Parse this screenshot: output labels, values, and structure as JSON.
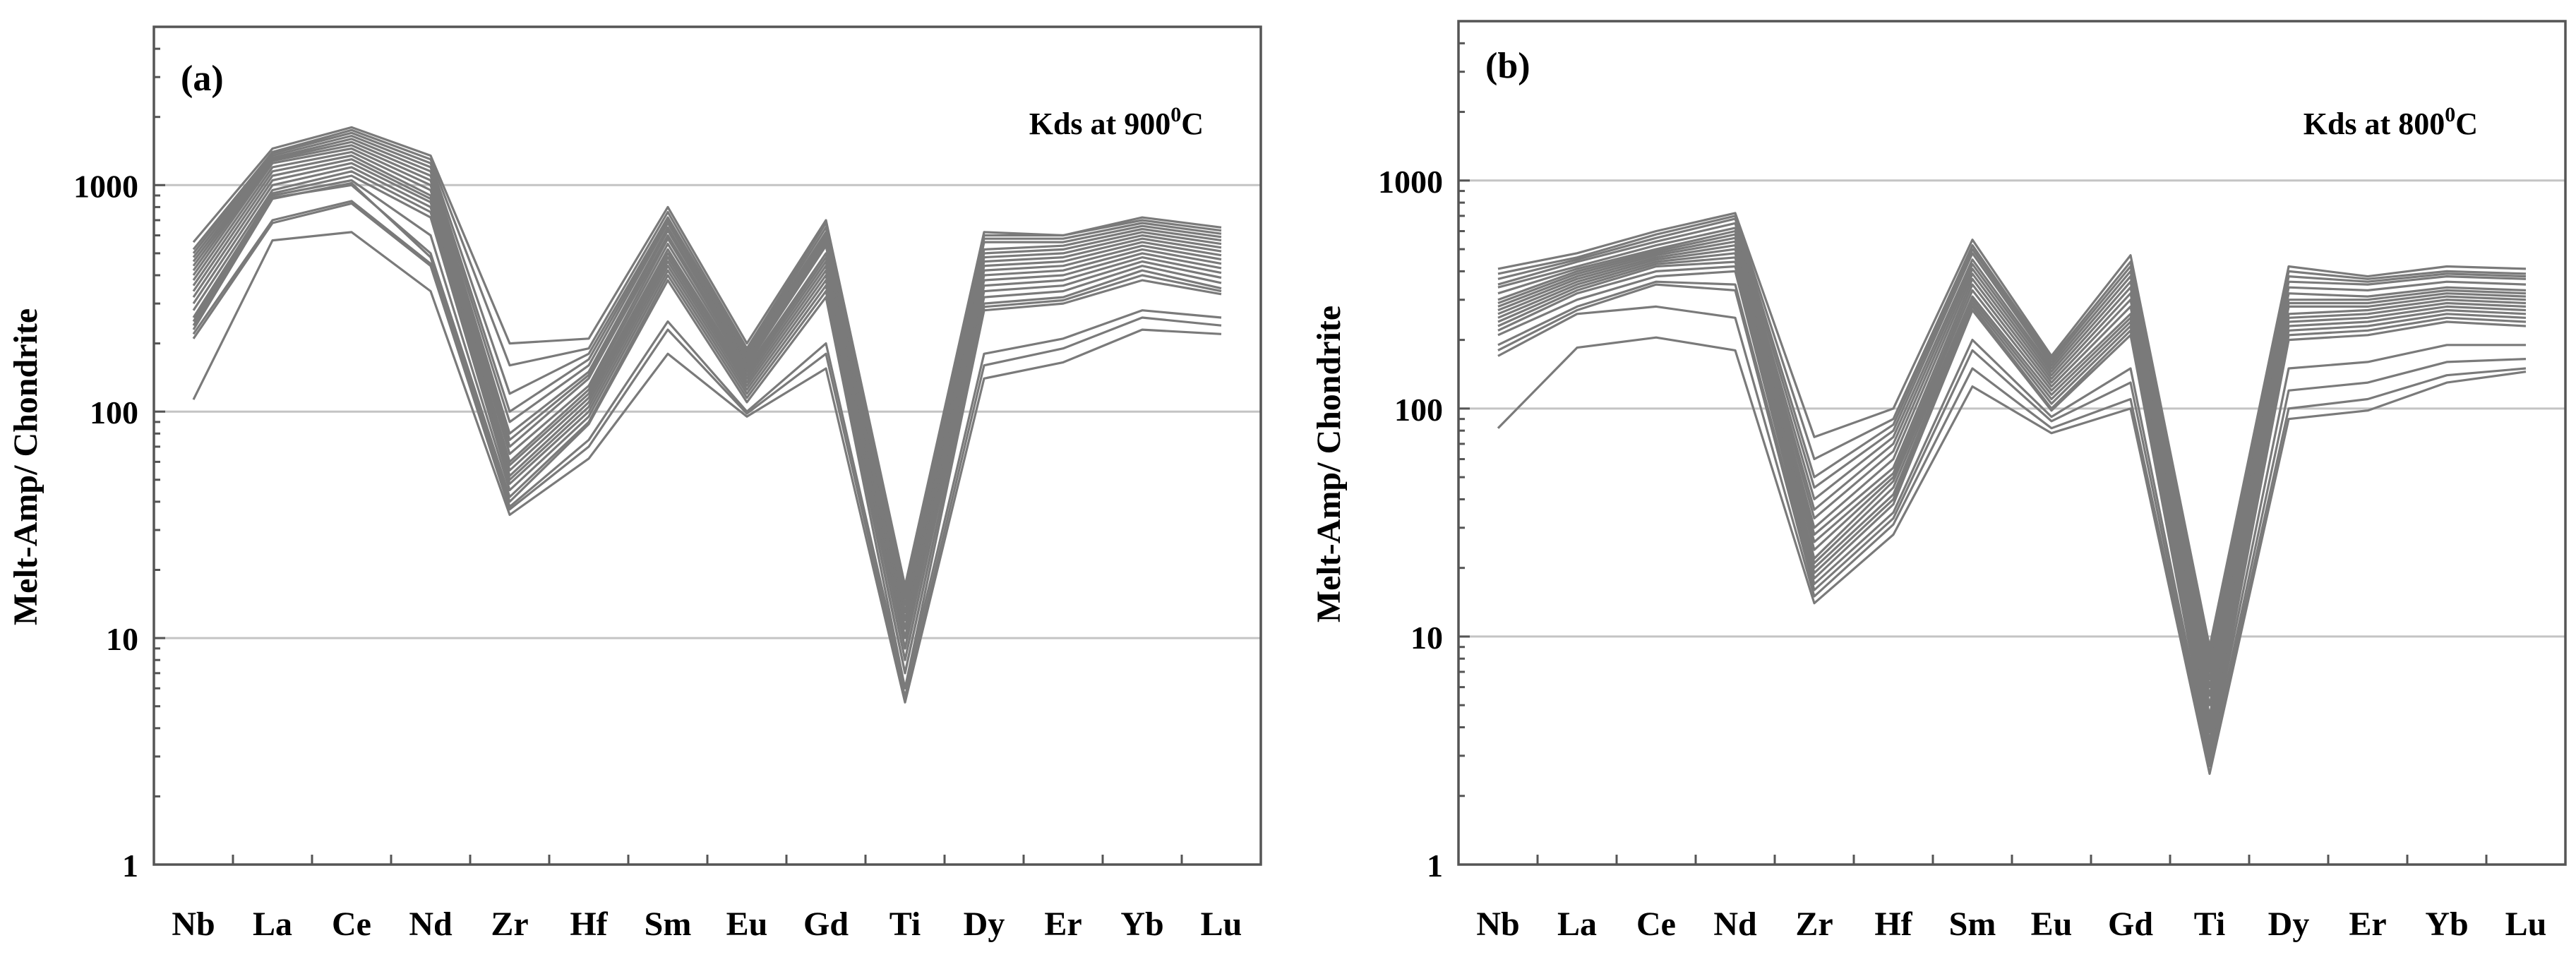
{
  "colors": {
    "line": "#7a7a7a",
    "grid": "#c4c4c4",
    "axis": "#555555",
    "text": "#000000"
  },
  "chart_data": [
    {
      "type": "line",
      "panel_label": "(a)",
      "annotation": {
        "prefix": "Kds at 900",
        "superscript": "0",
        "suffix": "C"
      },
      "ylabel": "Melt-Amp/ Chondrite",
      "xlabel": "",
      "yscale": "log",
      "ylim": [
        1,
        5000
      ],
      "yticks": [
        1,
        10,
        100,
        1000
      ],
      "ytick_labels": [
        "1",
        "10",
        "100",
        "1000"
      ],
      "grid": true,
      "categories": [
        "Nb",
        "La",
        "Ce",
        "Nd",
        "Zr",
        "Hf",
        "Sm",
        "Eu",
        "Gd",
        "Ti",
        "Dy",
        "Er",
        "Yb",
        "Lu"
      ],
      "series": [
        {
          "name": "s1",
          "values": [
            560,
            1450,
            1800,
            1350,
            200,
            210,
            800,
            200,
            700,
            17,
            620,
            600,
            720,
            650
          ]
        },
        {
          "name": "s2",
          "values": [
            520,
            1400,
            1750,
            1300,
            160,
            190,
            760,
            190,
            680,
            16,
            600,
            600,
            700,
            630
          ]
        },
        {
          "name": "s3",
          "values": [
            500,
            1380,
            1700,
            1250,
            120,
            180,
            720,
            185,
            650,
            15,
            580,
            580,
            680,
            610
          ]
        },
        {
          "name": "s4",
          "values": [
            480,
            1350,
            1650,
            1200,
            100,
            170,
            700,
            180,
            620,
            14,
            560,
            560,
            660,
            590
          ]
        },
        {
          "name": "s5",
          "values": [
            460,
            1320,
            1600,
            1150,
            90,
            160,
            680,
            175,
            600,
            13,
            520,
            540,
            640,
            570
          ]
        },
        {
          "name": "s6",
          "values": [
            440,
            1300,
            1550,
            1100,
            80,
            150,
            650,
            170,
            580,
            12,
            500,
            520,
            620,
            550
          ]
        },
        {
          "name": "s7",
          "values": [
            420,
            1280,
            1500,
            1050,
            75,
            145,
            630,
            165,
            560,
            12,
            480,
            500,
            600,
            530
          ]
        },
        {
          "name": "s8",
          "values": [
            400,
            1250,
            1450,
            1000,
            70,
            140,
            600,
            160,
            540,
            11,
            460,
            480,
            580,
            510
          ]
        },
        {
          "name": "s9",
          "values": [
            380,
            1200,
            1400,
            950,
            65,
            130,
            580,
            155,
            500,
            11,
            440,
            460,
            560,
            490
          ]
        },
        {
          "name": "s10",
          "values": [
            360,
            1150,
            1350,
            900,
            60,
            125,
            550,
            150,
            480,
            10,
            420,
            440,
            540,
            470
          ]
        },
        {
          "name": "s11",
          "values": [
            340,
            1100,
            1300,
            870,
            58,
            120,
            520,
            145,
            460,
            10,
            400,
            420,
            520,
            450
          ]
        },
        {
          "name": "s12",
          "values": [
            320,
            1050,
            1250,
            840,
            55,
            115,
            500,
            140,
            440,
            9,
            380,
            400,
            500,
            430
          ]
        },
        {
          "name": "s13",
          "values": [
            300,
            1000,
            1200,
            800,
            52,
            110,
            480,
            135,
            420,
            9,
            360,
            380,
            480,
            410
          ]
        },
        {
          "name": "s14",
          "values": [
            280,
            950,
            1150,
            760,
            50,
            105,
            460,
            130,
            400,
            8,
            340,
            360,
            460,
            390
          ]
        },
        {
          "name": "s15",
          "values": [
            260,
            920,
            1100,
            720,
            48,
            100,
            440,
            125,
            380,
            8,
            320,
            340,
            440,
            370
          ]
        },
        {
          "name": "s16",
          "values": [
            250,
            900,
            1050,
            600,
            45,
            95,
            420,
            120,
            360,
            7,
            300,
            320,
            420,
            350
          ]
        },
        {
          "name": "s17",
          "values": [
            240,
            880,
            1000,
            500,
            42,
            90,
            400,
            115,
            340,
            7,
            290,
            310,
            400,
            340
          ]
        },
        {
          "name": "s18",
          "values": [
            230,
            870,
            1020,
            480,
            40,
            88,
            380,
            110,
            320,
            6,
            280,
            300,
            380,
            330
          ]
        },
        {
          "name": "s19",
          "values": [
            220,
            700,
            850,
            450,
            38,
            75,
            250,
            100,
            200,
            6,
            180,
            210,
            280,
            260
          ]
        },
        {
          "name": "s20",
          "values": [
            210,
            680,
            830,
            440,
            37,
            70,
            230,
            98,
            180,
            5.5,
            160,
            190,
            260,
            240
          ]
        },
        {
          "name": "s21",
          "values": [
            113,
            570,
            620,
            340,
            35,
            62,
            180,
            95,
            155,
            5.2,
            140,
            165,
            230,
            220
          ]
        }
      ]
    },
    {
      "type": "line",
      "panel_label": "(b)",
      "annotation": {
        "prefix": "Kds at 800",
        "superscript": "0",
        "suffix": "C"
      },
      "ylabel": "Melt-Amp/ Chondrite",
      "xlabel": "",
      "yscale": "log",
      "ylim": [
        1,
        5000
      ],
      "yticks": [
        1,
        10,
        100,
        1000
      ],
      "ytick_labels": [
        "1",
        "10",
        "100",
        "1000"
      ],
      "grid": true,
      "categories": [
        "Nb",
        "La",
        "Ce",
        "Nd",
        "Zr",
        "Hf",
        "Sm",
        "Eu",
        "Gd",
        "Ti",
        "Dy",
        "Er",
        "Yb",
        "Lu"
      ],
      "series": [
        {
          "name": "s1",
          "values": [
            410,
            480,
            600,
            720,
            75,
            100,
            550,
            170,
            470,
            9,
            420,
            380,
            420,
            410
          ]
        },
        {
          "name": "s2",
          "values": [
            390,
            460,
            580,
            700,
            60,
            90,
            520,
            165,
            440,
            8.5,
            400,
            370,
            400,
            390
          ]
        },
        {
          "name": "s3",
          "values": [
            370,
            450,
            560,
            680,
            50,
            85,
            500,
            160,
            420,
            8,
            380,
            360,
            390,
            380
          ]
        },
        {
          "name": "s4",
          "values": [
            350,
            440,
            540,
            650,
            45,
            80,
            480,
            155,
            400,
            7.5,
            360,
            350,
            380,
            370
          ]
        },
        {
          "name": "s5",
          "values": [
            340,
            420,
            520,
            620,
            40,
            75,
            450,
            150,
            380,
            7,
            340,
            330,
            360,
            350
          ]
        },
        {
          "name": "s6",
          "values": [
            320,
            410,
            500,
            600,
            36,
            70,
            430,
            145,
            360,
            6.5,
            320,
            310,
            340,
            330
          ]
        },
        {
          "name": "s7",
          "values": [
            300,
            400,
            490,
            580,
            33,
            65,
            410,
            140,
            340,
            6,
            300,
            300,
            330,
            320
          ]
        },
        {
          "name": "s8",
          "values": [
            290,
            390,
            480,
            560,
            30,
            60,
            390,
            135,
            320,
            5.5,
            290,
            290,
            320,
            310
          ]
        },
        {
          "name": "s9",
          "values": [
            280,
            380,
            470,
            540,
            28,
            55,
            370,
            130,
            300,
            5,
            280,
            280,
            310,
            300
          ]
        },
        {
          "name": "s10",
          "values": [
            270,
            370,
            460,
            520,
            26,
            52,
            350,
            125,
            280,
            4.5,
            260,
            270,
            300,
            290
          ]
        },
        {
          "name": "s11",
          "values": [
            260,
            360,
            450,
            500,
            24,
            50,
            330,
            120,
            260,
            4.2,
            250,
            260,
            290,
            280
          ]
        },
        {
          "name": "s12",
          "values": [
            250,
            350,
            440,
            480,
            22,
            48,
            310,
            115,
            250,
            4,
            240,
            250,
            280,
            270
          ]
        },
        {
          "name": "s13",
          "values": [
            240,
            340,
            430,
            460,
            21,
            45,
            300,
            110,
            240,
            3.8,
            230,
            240,
            270,
            260
          ]
        },
        {
          "name": "s14",
          "values": [
            230,
            330,
            420,
            440,
            20,
            42,
            290,
            105,
            230,
            3.5,
            220,
            230,
            260,
            250
          ]
        },
        {
          "name": "s15",
          "values": [
            220,
            320,
            400,
            420,
            19,
            40,
            280,
            100,
            220,
            3.3,
            210,
            220,
            250,
            240
          ]
        },
        {
          "name": "s16",
          "values": [
            210,
            300,
            380,
            400,
            18,
            38,
            270,
            98,
            210,
            3.1,
            200,
            210,
            240,
            230
          ]
        },
        {
          "name": "s17",
          "values": [
            190,
            280,
            360,
            350,
            17,
            35,
            200,
            92,
            150,
            3,
            150,
            160,
            190,
            190
          ]
        },
        {
          "name": "s18",
          "values": [
            180,
            270,
            350,
            330,
            16,
            33,
            180,
            88,
            130,
            2.8,
            120,
            130,
            160,
            165
          ]
        },
        {
          "name": "s19",
          "values": [
            170,
            260,
            280,
            250,
            15,
            31,
            150,
            82,
            110,
            2.7,
            100,
            110,
            140,
            150
          ]
        },
        {
          "name": "s20",
          "values": [
            82,
            185,
            205,
            180,
            14,
            28,
            125,
            78,
            100,
            2.5,
            90,
            98,
            130,
            145
          ]
        }
      ]
    }
  ]
}
